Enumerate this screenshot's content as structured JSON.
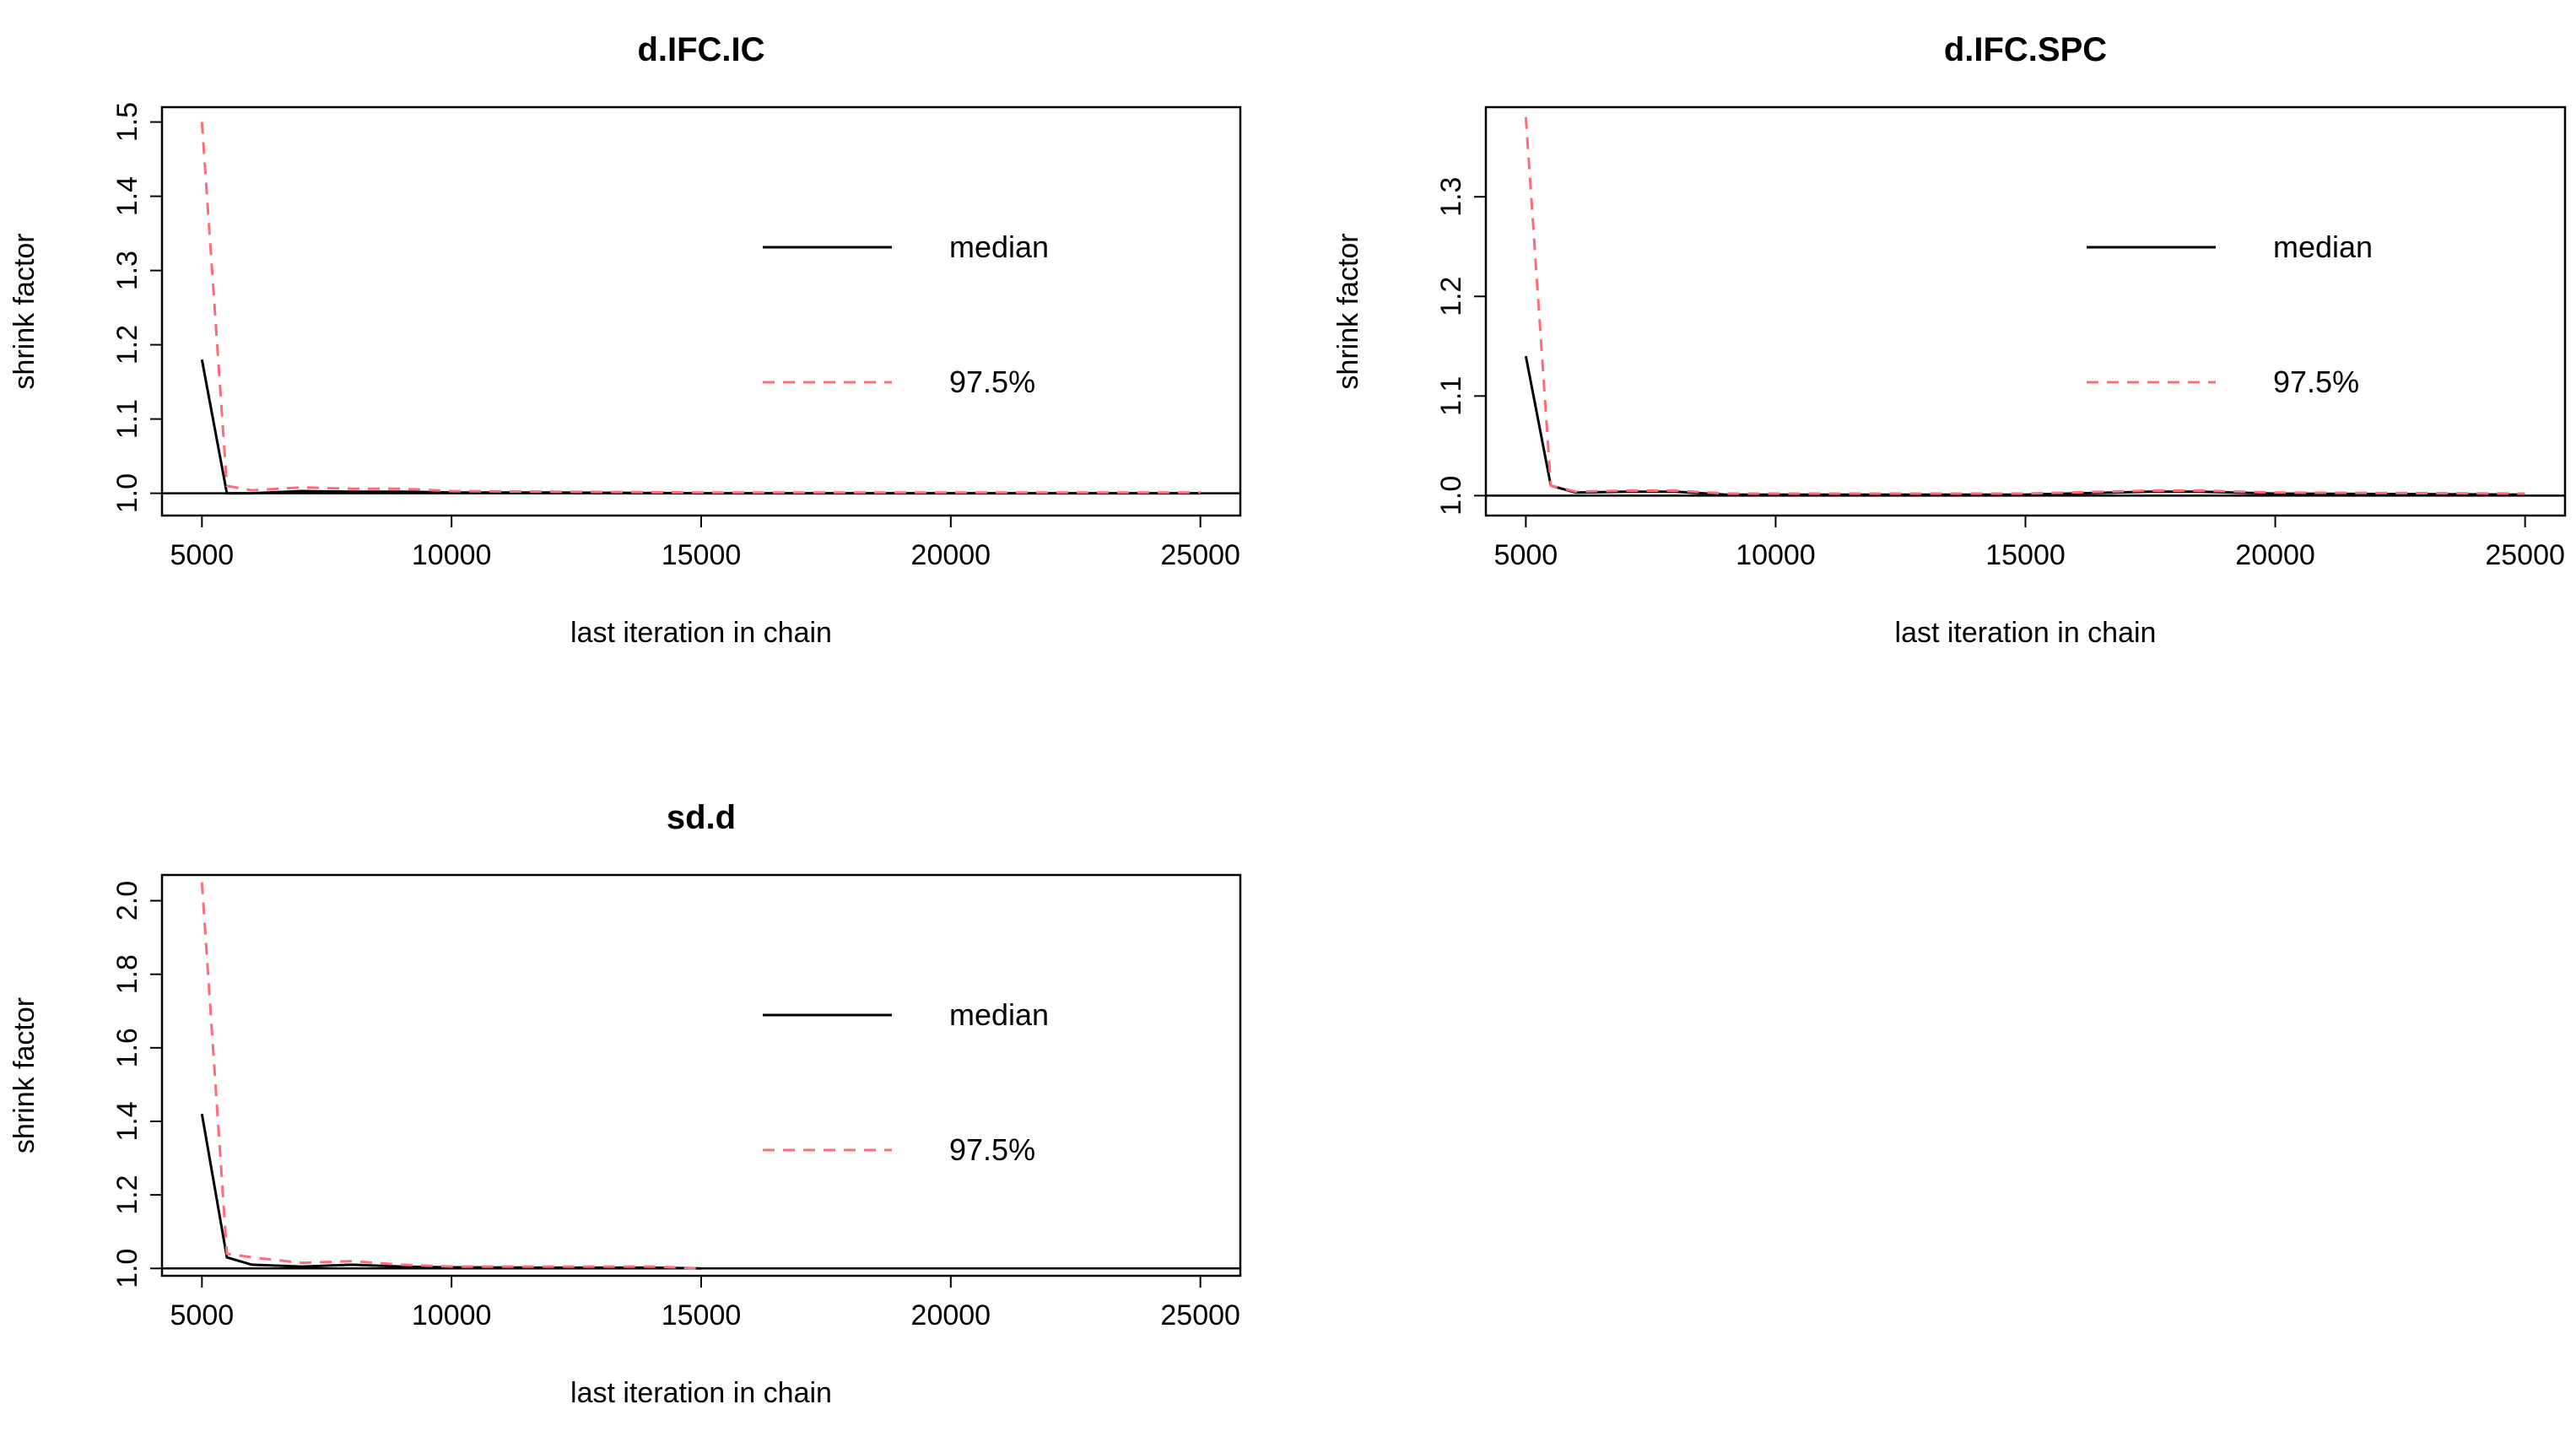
{
  "colors": {
    "median": "#000000",
    "upper": "#ff6b7a",
    "box": "#000000"
  },
  "chart_data": [
    {
      "type": "line",
      "title": "d.IFC.IC",
      "xlabel": "last iteration in chain",
      "ylabel": "shrink factor",
      "xlim": [
        4200,
        25800
      ],
      "ylim": [
        0.97,
        1.52
      ],
      "xticks": [
        5000,
        10000,
        15000,
        20000,
        25000
      ],
      "yticks": [
        1.0,
        1.1,
        1.2,
        1.3,
        1.4,
        1.5
      ],
      "ytick_labels": [
        "1.0",
        "1.1",
        "1.2",
        "1.3",
        "1.4",
        "1.5"
      ],
      "reference_line": 1.0,
      "legend": {
        "position": "right",
        "entries": [
          "median",
          "97.5%"
        ]
      },
      "series": [
        {
          "name": "median",
          "style": "solid",
          "x": [
            5000,
            5500,
            6000,
            7000,
            8000,
            9000,
            10000,
            12000,
            15000,
            20000,
            25000
          ],
          "values": [
            1.18,
            1.0,
            1.0,
            1.003,
            1.002,
            1.002,
            1.001,
            1.001,
            1.0,
            1.0,
            1.0
          ]
        },
        {
          "name": "97.5%",
          "style": "dashed",
          "x": [
            5000,
            5500,
            6000,
            7000,
            8000,
            9000,
            10000,
            12000,
            15000,
            20000,
            25000
          ],
          "values": [
            1.5,
            1.01,
            1.004,
            1.008,
            1.006,
            1.006,
            1.003,
            1.002,
            1.001,
            1.001,
            1.001
          ]
        }
      ]
    },
    {
      "type": "line",
      "title": "d.IFC.SPC",
      "xlabel": "last iteration in chain",
      "ylabel": "shrink factor",
      "xlim": [
        4200,
        25800
      ],
      "ylim": [
        0.98,
        1.39
      ],
      "xticks": [
        5000,
        10000,
        15000,
        20000,
        25000
      ],
      "yticks": [
        1.0,
        1.1,
        1.2,
        1.3
      ],
      "ytick_labels": [
        "1.0",
        "1.1",
        "1.2",
        "1.3"
      ],
      "reference_line": 1.0,
      "legend": {
        "position": "right",
        "entries": [
          "median",
          "97.5%"
        ]
      },
      "series": [
        {
          "name": "median",
          "style": "solid",
          "x": [
            5000,
            5500,
            6000,
            7000,
            8000,
            9000,
            10000,
            15000,
            17500,
            18500,
            20000,
            25000
          ],
          "values": [
            1.14,
            1.01,
            1.003,
            1.004,
            1.004,
            1.001,
            1.001,
            1.001,
            1.004,
            1.004,
            1.002,
            1.001
          ]
        },
        {
          "name": "97.5%",
          "style": "dashed",
          "x": [
            5000,
            5500,
            6000,
            7000,
            8000,
            9000,
            10000,
            15000,
            17500,
            18500,
            20000,
            25000
          ],
          "values": [
            1.38,
            1.01,
            1.004,
            1.005,
            1.005,
            1.002,
            1.002,
            1.002,
            1.005,
            1.005,
            1.003,
            1.002
          ]
        }
      ]
    },
    {
      "type": "line",
      "title": "sd.d",
      "xlabel": "last iteration in chain",
      "ylabel": "shrink factor",
      "xlim": [
        4200,
        25800
      ],
      "ylim": [
        0.98,
        2.07
      ],
      "xticks": [
        5000,
        10000,
        15000,
        20000,
        25000
      ],
      "yticks": [
        1.0,
        1.2,
        1.4,
        1.6,
        1.8,
        2.0
      ],
      "ytick_labels": [
        "1.0",
        "1.2",
        "1.4",
        "1.6",
        "1.8",
        "2.0"
      ],
      "reference_line": 1.0,
      "legend": {
        "position": "right",
        "entries": [
          "median",
          "97.5%"
        ]
      },
      "series": [
        {
          "name": "median",
          "style": "solid",
          "x": [
            5000,
            5500,
            6000,
            7000,
            8000,
            9000,
            10000,
            12000,
            14000,
            15000
          ],
          "values": [
            1.42,
            1.03,
            1.01,
            1.005,
            1.01,
            1.005,
            1.003,
            1.002,
            1.002,
            1.0
          ]
        },
        {
          "name": "97.5%",
          "style": "dashed",
          "x": [
            5000,
            5500,
            6000,
            7000,
            8000,
            9000,
            10000,
            12000,
            14000,
            15000
          ],
          "values": [
            2.05,
            1.04,
            1.03,
            1.015,
            1.02,
            1.01,
            1.005,
            1.005,
            1.005,
            1.0
          ]
        }
      ]
    }
  ]
}
